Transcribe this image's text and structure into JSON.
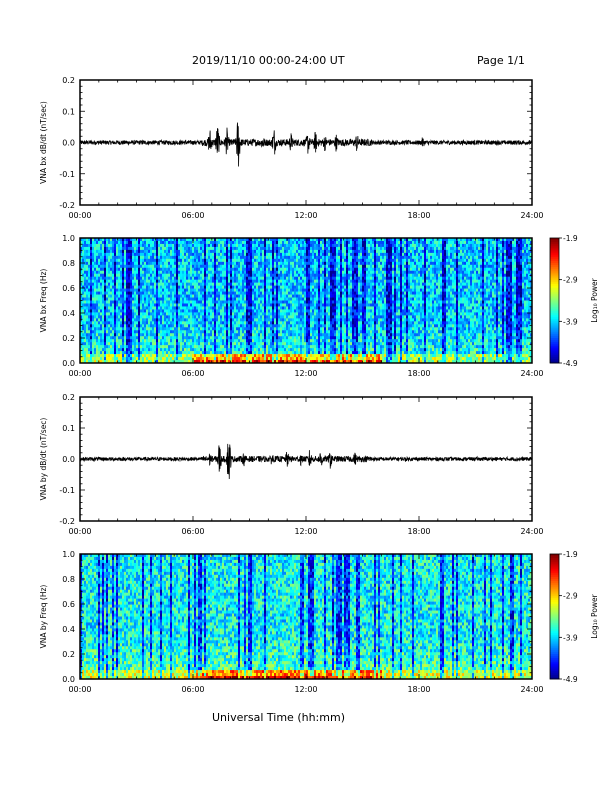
{
  "header": {
    "title": "2019/11/10  00:00-24:00 UT",
    "page": "Page 1/1"
  },
  "xlabel": "Universal Time (hh:mm)",
  "chart_data": [
    {
      "type": "line",
      "name": "VNA bx dB/dt",
      "ylabel": "VNA bx dB/dt (nT/sec)",
      "xlim": [
        0,
        24
      ],
      "ylim": [
        -0.2,
        0.2
      ],
      "yticks": [
        "0.2",
        "0.1",
        "0.0",
        "-0.1",
        "-0.2"
      ],
      "xticks": [
        "00:00",
        "06:00",
        "12:00",
        "18:00",
        "24:00"
      ],
      "baseline_amplitude": 0.007,
      "bursts": [
        {
          "t": 6.9,
          "amp": 0.05
        },
        {
          "t": 7.3,
          "amp": 0.065
        },
        {
          "t": 7.8,
          "amp": 0.05
        },
        {
          "t": 8.4,
          "amp": 0.1
        },
        {
          "t": 9.7,
          "amp": 0.03
        },
        {
          "t": 10.3,
          "amp": 0.055
        },
        {
          "t": 11.2,
          "amp": 0.035
        },
        {
          "t": 12.1,
          "amp": 0.04
        },
        {
          "t": 12.5,
          "amp": 0.04
        },
        {
          "t": 13.0,
          "amp": 0.03
        },
        {
          "t": 13.6,
          "amp": 0.03
        },
        {
          "t": 14.7,
          "amp": 0.035
        },
        {
          "t": 18.2,
          "amp": 0.02
        }
      ]
    },
    {
      "type": "heatmap",
      "name": "VNA bx Freq",
      "ylabel": "VNA bx Freq (Hz)",
      "xlim": [
        0,
        24
      ],
      "ylim": [
        0,
        1
      ],
      "yticks": [
        "1.0",
        "0.8",
        "0.6",
        "0.4",
        "0.2",
        "0.0"
      ],
      "xticks": [
        "00:00",
        "06:00",
        "12:00",
        "18:00",
        "24:00"
      ],
      "colorbar": {
        "label": "Log₁₀ Power",
        "min": -4.9,
        "max": -1.9,
        "ticks": [
          "-1.9",
          "-2.9",
          "-3.9",
          "-4.9"
        ]
      }
    },
    {
      "type": "line",
      "name": "VNA by dB/dt",
      "ylabel": "VNA by dB/dt (nT/sec)",
      "xlim": [
        0,
        24
      ],
      "ylim": [
        -0.2,
        0.2
      ],
      "yticks": [
        "0.2",
        "0.1",
        "0.0",
        "-0.1",
        "-0.2"
      ],
      "xticks": [
        "00:00",
        "06:00",
        "12:00",
        "18:00",
        "24:00"
      ],
      "baseline_amplitude": 0.006,
      "bursts": [
        {
          "t": 6.9,
          "amp": 0.025
        },
        {
          "t": 7.4,
          "amp": 0.06
        },
        {
          "t": 7.9,
          "amp": 0.095
        },
        {
          "t": 8.7,
          "amp": 0.025
        },
        {
          "t": 10.2,
          "amp": 0.025
        },
        {
          "t": 11.0,
          "amp": 0.03
        },
        {
          "t": 11.7,
          "amp": 0.025
        },
        {
          "t": 12.2,
          "amp": 0.035
        },
        {
          "t": 12.8,
          "amp": 0.04
        },
        {
          "t": 13.3,
          "amp": 0.035
        },
        {
          "t": 14.6,
          "amp": 0.025
        }
      ]
    },
    {
      "type": "heatmap",
      "name": "VNA by Freq",
      "ylabel": "VNA by Freq (Hz)",
      "xlim": [
        0,
        24
      ],
      "ylim": [
        0,
        1
      ],
      "yticks": [
        "1.0",
        "0.8",
        "0.6",
        "0.4",
        "0.2",
        "0.0"
      ],
      "xticks": [
        "00:00",
        "06:00",
        "12:00",
        "18:00",
        "24:00"
      ],
      "colorbar": {
        "label": "Log₁₀ Power",
        "min": -4.9,
        "max": -1.9,
        "ticks": [
          "-1.9",
          "-2.9",
          "-3.9",
          "-4.9"
        ]
      }
    }
  ]
}
